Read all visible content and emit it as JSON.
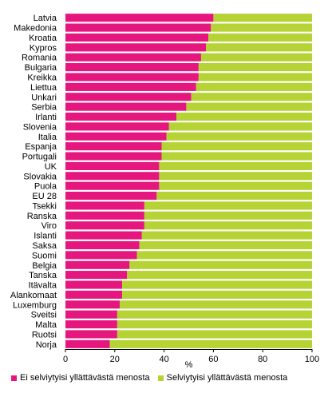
{
  "chart_data": {
    "type": "bar",
    "orientation": "horizontal",
    "stacked": true,
    "categories": [
      "Latvia",
      "Makedonia",
      "Kroatia",
      "Kypros",
      "Romania",
      "Bulgaria",
      "Kreikka",
      "Liettua",
      "Unkari",
      "Serbia",
      "Irlanti",
      "Slovenia",
      "Italia",
      "Espanja",
      "Portugali",
      "UK",
      "Slovakia",
      "Puola",
      "EU 28",
      "Tsekki",
      "Ranska",
      "Viro",
      "Islanti",
      "Saksa",
      "Suomi",
      "Belgia",
      "Tanska",
      "Itävalta",
      "Alankomaat",
      "Luxemburg",
      "Sveitsi",
      "Malta",
      "Ruotsi",
      "Norja"
    ],
    "series": [
      {
        "name": "Ei selviytyisi yllättävästä menosta",
        "color": "#e5177e",
        "values": [
          60,
          59,
          58,
          57,
          55,
          54,
          54,
          53,
          51,
          49,
          45,
          42,
          41,
          39,
          39,
          38,
          38,
          38,
          37,
          32,
          32,
          32,
          31,
          30,
          29,
          26,
          25,
          23,
          23,
          22,
          21,
          21,
          21,
          18
        ]
      },
      {
        "name": "Selviytyisi yllättävästä menosta",
        "color": "#b5d334",
        "values": [
          40,
          41,
          42,
          43,
          45,
          46,
          46,
          47,
          49,
          51,
          55,
          58,
          59,
          61,
          61,
          62,
          62,
          62,
          63,
          68,
          68,
          68,
          69,
          70,
          71,
          74,
          75,
          77,
          77,
          78,
          79,
          79,
          79,
          82
        ]
      }
    ],
    "xlabel": "%",
    "xlim": [
      0,
      100
    ],
    "xticks": [
      0,
      20,
      40,
      60,
      80,
      100
    ],
    "grid": false,
    "legend_position": "bottom"
  }
}
